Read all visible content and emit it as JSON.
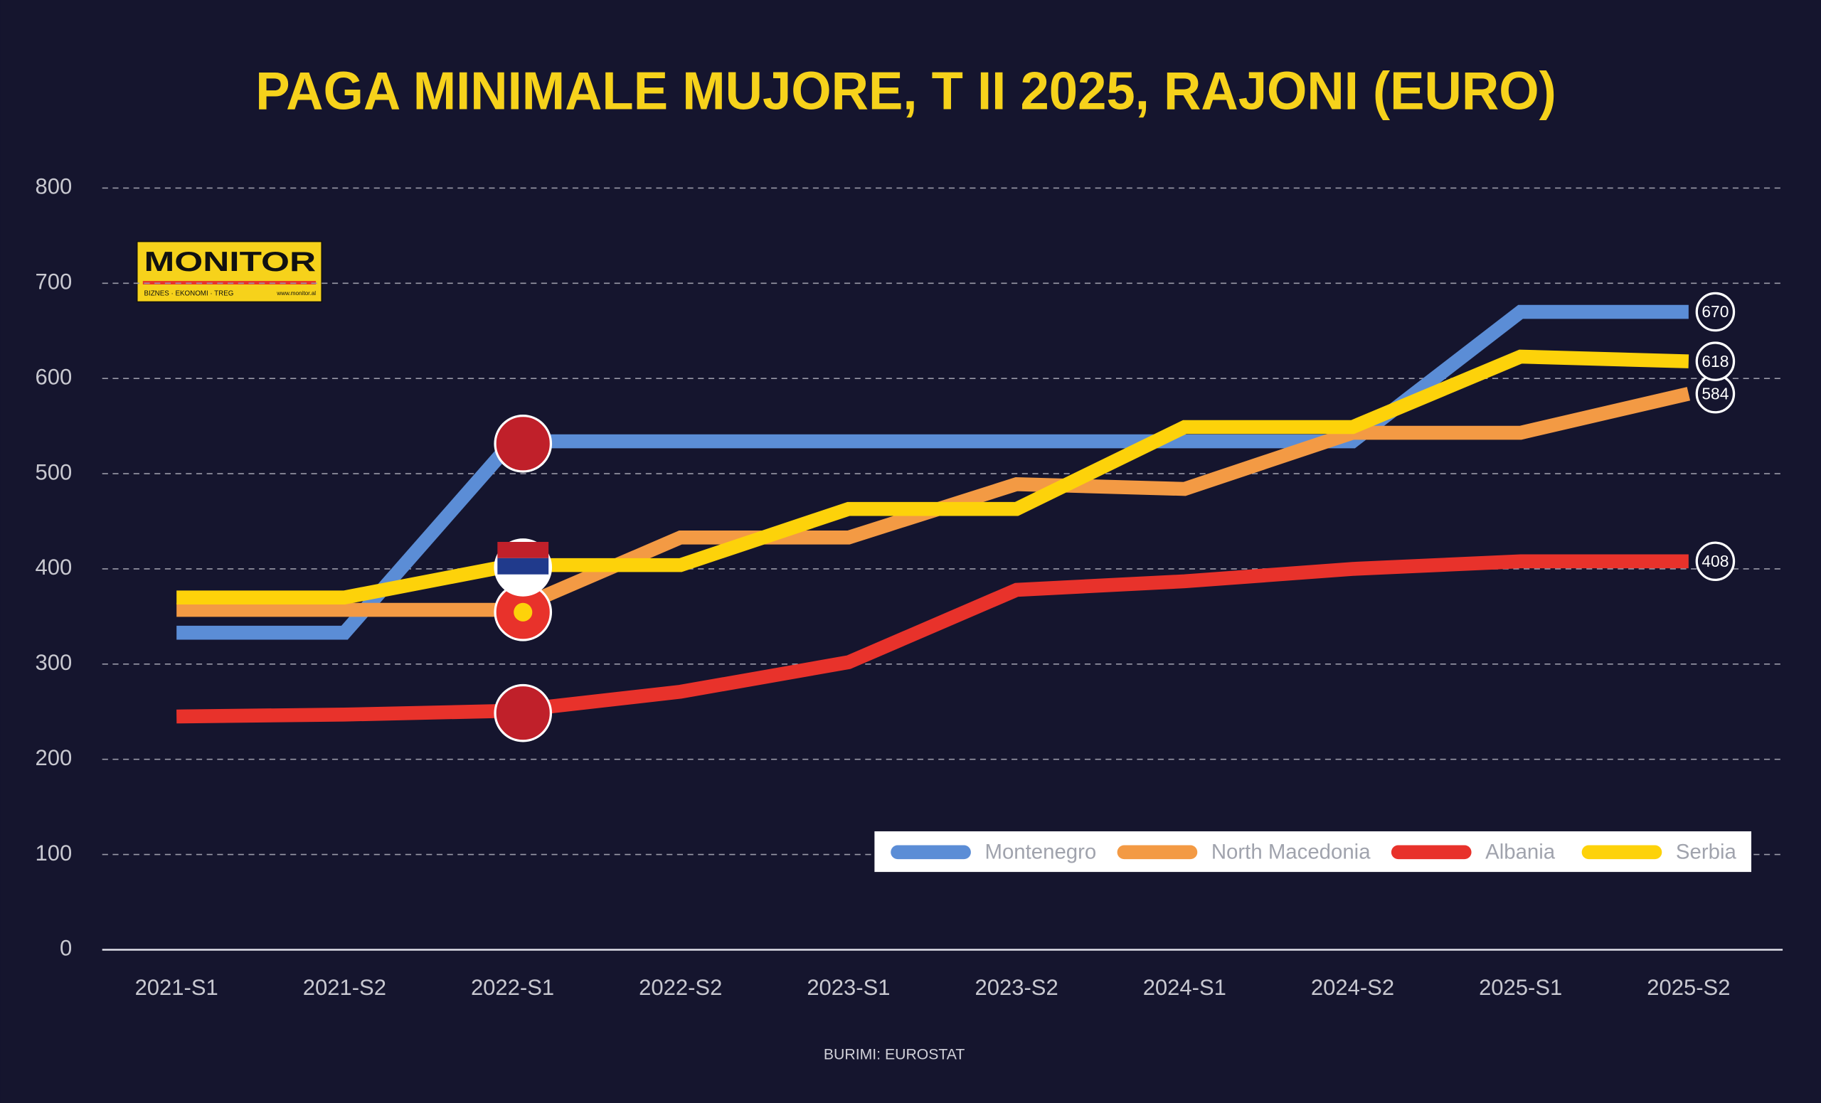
{
  "chart_data": {
    "type": "line",
    "title": "PAGA MINIMALE MUJORE, T II 2025, RAJONI (EURO)",
    "source": "BURIMI: EUROSTAT",
    "logo": {
      "name": "MONITOR",
      "tagline": "BIZNES · EKONOMI · TREG",
      "url": "www.monitor.al"
    },
    "categories": [
      "2021-S1",
      "2021-S2",
      "2022-S1",
      "2022-S2",
      "2023-S1",
      "2023-S2",
      "2024-S1",
      "2024-S2",
      "2025-S1",
      "2025-S2"
    ],
    "series": [
      {
        "name": "Montenegro",
        "color": "#5b8dd6",
        "values": [
          333,
          333,
          534,
          534,
          534,
          534,
          534,
          534,
          670,
          670
        ]
      },
      {
        "name": "North Macedonia",
        "color": "#f39a44",
        "values": [
          357,
          357,
          357,
          433,
          433,
          489,
          484,
          543,
          543,
          584
        ]
      },
      {
        "name": "Albania",
        "color": "#e8322b",
        "values": [
          245,
          247,
          251,
          271,
          302,
          378,
          387,
          400,
          408,
          408
        ]
      },
      {
        "name": "Serbia",
        "color": "#fdd20a",
        "values": [
          370,
          370,
          404,
          404,
          463,
          463,
          549,
          549,
          623,
          618
        ]
      }
    ],
    "ylim": [
      0,
      800
    ],
    "yticks": [
      0,
      100,
      200,
      300,
      400,
      500,
      600,
      700,
      800
    ],
    "grid": true,
    "legend": "bottom-right"
  }
}
